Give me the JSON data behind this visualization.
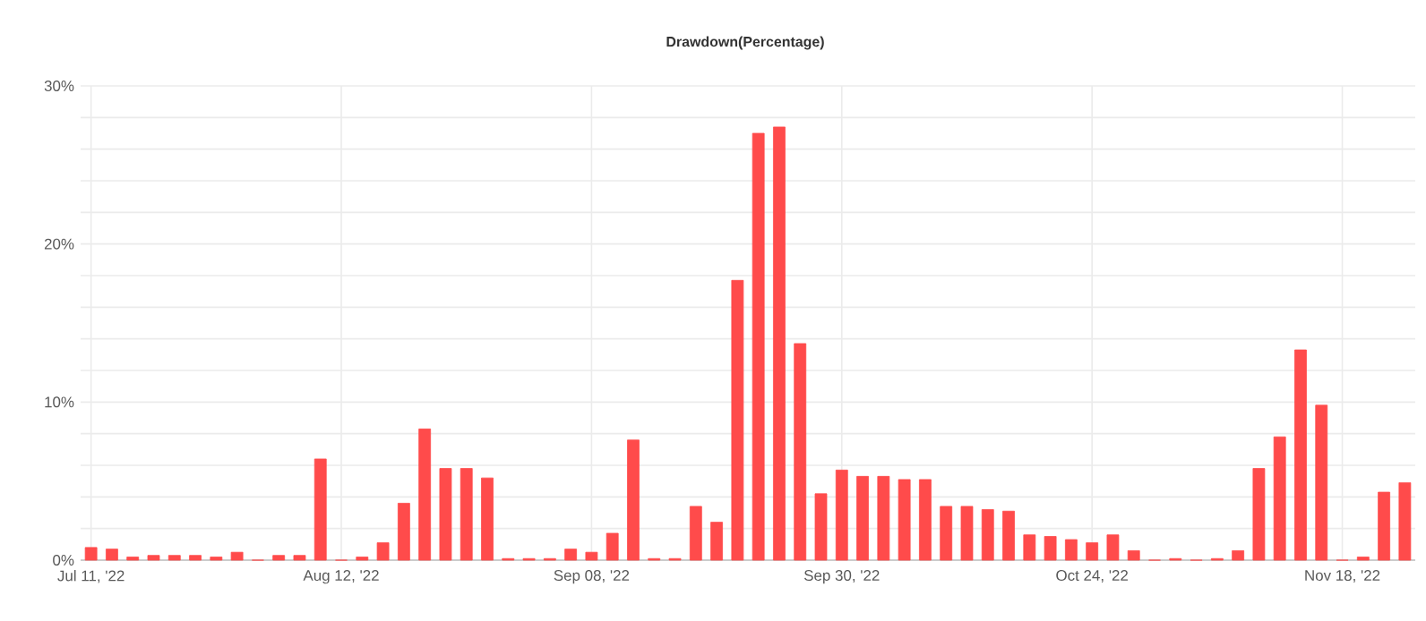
{
  "chart_data": {
    "type": "bar",
    "title": "Drawdown(Percentage)",
    "categories": [
      "Jul 11, '22",
      null,
      null,
      null,
      null,
      null,
      null,
      null,
      null,
      null,
      null,
      null,
      "Aug 12, '22",
      null,
      null,
      null,
      null,
      null,
      null,
      null,
      null,
      null,
      null,
      null,
      "Sep 08, '22",
      null,
      null,
      null,
      null,
      null,
      null,
      null,
      null,
      null,
      null,
      null,
      "Sep 30, '22",
      null,
      null,
      null,
      null,
      null,
      null,
      null,
      null,
      null,
      null,
      null,
      "Oct 24, '22",
      null,
      null,
      null,
      null,
      null,
      null,
      null,
      null,
      null,
      null,
      null,
      "Nov 18, '22",
      null,
      null,
      null
    ],
    "values": [
      0.8,
      0.7,
      0.2,
      0.3,
      0.3,
      0.3,
      0.2,
      0.5,
      0,
      0.3,
      0.3,
      6.4,
      0,
      0.2,
      1.1,
      3.6,
      8.3,
      5.8,
      5.8,
      5.2,
      0.1,
      0.1,
      0.1,
      0.7,
      0.5,
      1.7,
      7.6,
      0.1,
      0.1,
      3.4,
      2.4,
      17.7,
      27.0,
      27.4,
      13.7,
      4.2,
      5.7,
      5.3,
      5.3,
      5.1,
      5.1,
      3.4,
      3.4,
      3.2,
      3.1,
      1.6,
      1.5,
      1.3,
      1.1,
      1.6,
      0.6,
      0,
      0.1,
      0,
      0.1,
      0.6,
      5.8,
      7.8,
      13.3,
      9.8,
      0,
      0.2,
      4.3,
      4.9
    ],
    "color": "#ff4b4b",
    "ylim": [
      0,
      30
    ],
    "yticks": [
      {
        "value": 0,
        "label": "0%"
      },
      {
        "value": 2,
        "label": null
      },
      {
        "value": 4,
        "label": null
      },
      {
        "value": 6,
        "label": null
      },
      {
        "value": 8,
        "label": null
      },
      {
        "value": 10,
        "label": "10%"
      },
      {
        "value": 12,
        "label": null
      },
      {
        "value": 14,
        "label": null
      },
      {
        "value": 16,
        "label": null
      },
      {
        "value": 18,
        "label": null
      },
      {
        "value": 20,
        "label": "20%"
      },
      {
        "value": 22,
        "label": null
      },
      {
        "value": 24,
        "label": null
      },
      {
        "value": 26,
        "label": null
      },
      {
        "value": 28,
        "label": null
      },
      {
        "value": 30,
        "label": "30%"
      }
    ],
    "grid": true
  }
}
